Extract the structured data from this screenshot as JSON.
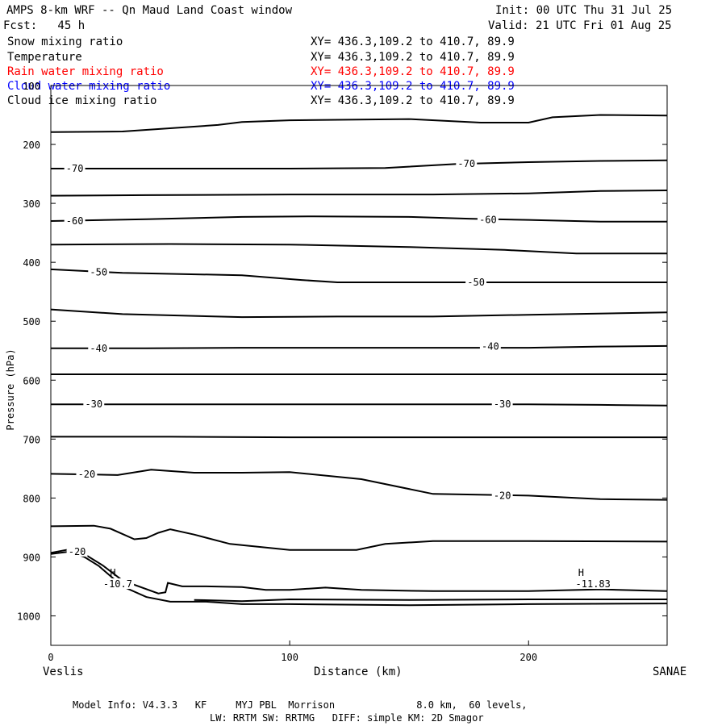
{
  "header": {
    "title": "AMPS 8-km WRF -- Qn Maud Land Coast window",
    "init": "Init: 00 UTC Thu 31 Jul 25",
    "fcst": "Fcst:   45 h",
    "valid": "Valid: 21 UTC Fri 01 Aug 25"
  },
  "legend": [
    {
      "name": "Snow mixing ratio",
      "xy": "XY= 436.3,109.2 to 410.7, 89.9",
      "color": "#000000"
    },
    {
      "name": "Temperature",
      "xy": "XY= 436.3,109.2 to 410.7, 89.9",
      "color": "#000000"
    },
    {
      "name": "Rain water mixing ratio",
      "xy": "XY= 436.3,109.2 to 410.7, 89.9",
      "color": "#ff0000"
    },
    {
      "name": "Cloud water mixing ratio",
      "xy": "XY= 436.3,109.2 to 410.7, 89.9",
      "color": "#0000ff"
    },
    {
      "name": "Cloud ice mixing ratio",
      "xy": "XY= 436.3,109.2 to 410.7, 89.9",
      "color": "#000000"
    }
  ],
  "axes": {
    "ylabel": "Pressure (hPa)",
    "xlabel": "Distance (km)",
    "left_station": "Veslis",
    "right_station": "SANAE"
  },
  "footer": {
    "line1": "Model Info: V4.3.3   KF     MYJ PBL  Morrison              8.0 km,  60 levels,",
    "line2": "LW: RRTM SW: RRTMG   DIFF: simple KM: 2D Smagor"
  },
  "chart_data": {
    "type": "line",
    "xlim": [
      0,
      258
    ],
    "ylim": [
      1050,
      100
    ],
    "x_ticks": [
      0,
      100,
      200
    ],
    "y_ticks": [
      100,
      200,
      300,
      400,
      500,
      600,
      700,
      800,
      900,
      1000
    ],
    "grid": false,
    "contours": [
      {
        "level": "-75",
        "points": [
          [
            0,
            179
          ],
          [
            30,
            178
          ],
          [
            70,
            167
          ],
          [
            80,
            162
          ],
          [
            100,
            159
          ],
          [
            150,
            157
          ],
          [
            180,
            163
          ],
          [
            200,
            163
          ],
          [
            210,
            154
          ],
          [
            230,
            150
          ],
          [
            258,
            151
          ]
        ]
      },
      {
        "level": "-70",
        "points": [
          [
            0,
            241
          ],
          [
            30,
            241
          ],
          [
            60,
            241
          ],
          [
            100,
            241
          ],
          [
            140,
            240
          ],
          [
            170,
            233
          ],
          [
            200,
            230
          ],
          [
            230,
            228
          ],
          [
            258,
            227
          ]
        ]
      },
      {
        "level": "-65",
        "points": [
          [
            0,
            287
          ],
          [
            40,
            286
          ],
          [
            100,
            285
          ],
          [
            160,
            285
          ],
          [
            200,
            283
          ],
          [
            230,
            279
          ],
          [
            258,
            278
          ]
        ]
      },
      {
        "level": "-60",
        "points": [
          [
            0,
            330
          ],
          [
            40,
            327
          ],
          [
            80,
            323
          ],
          [
            110,
            322
          ],
          [
            150,
            323
          ],
          [
            175,
            326
          ],
          [
            200,
            328
          ],
          [
            230,
            331
          ],
          [
            258,
            331
          ]
        ]
      },
      {
        "level": "-55",
        "points": [
          [
            0,
            370
          ],
          [
            50,
            369
          ],
          [
            100,
            370
          ],
          [
            150,
            374
          ],
          [
            190,
            379
          ],
          [
            220,
            385
          ],
          [
            258,
            385
          ]
        ]
      },
      {
        "level": "-50",
        "points": [
          [
            0,
            412
          ],
          [
            30,
            418
          ],
          [
            80,
            422
          ],
          [
            105,
            430
          ],
          [
            120,
            434
          ],
          [
            150,
            434
          ],
          [
            200,
            434
          ],
          [
            258,
            434
          ]
        ]
      },
      {
        "level": "-45",
        "points": [
          [
            0,
            480
          ],
          [
            30,
            488
          ],
          [
            80,
            493
          ],
          [
            120,
            492
          ],
          [
            160,
            492
          ],
          [
            200,
            489
          ],
          [
            258,
            485
          ]
        ]
      },
      {
        "level": "-40",
        "points": [
          [
            0,
            546
          ],
          [
            40,
            546
          ],
          [
            80,
            545
          ],
          [
            150,
            545
          ],
          [
            200,
            545
          ],
          [
            230,
            543
          ],
          [
            258,
            542
          ]
        ]
      },
      {
        "level": "-35",
        "points": [
          [
            0,
            590
          ],
          [
            100,
            590
          ],
          [
            200,
            590
          ],
          [
            258,
            590
          ]
        ]
      },
      {
        "level": "-30",
        "points": [
          [
            0,
            641
          ],
          [
            50,
            641
          ],
          [
            100,
            641
          ],
          [
            150,
            641
          ],
          [
            200,
            641
          ],
          [
            230,
            642
          ],
          [
            258,
            643
          ]
        ]
      },
      {
        "level": "-25",
        "points": [
          [
            0,
            696
          ],
          [
            50,
            696
          ],
          [
            100,
            697
          ],
          [
            150,
            697
          ],
          [
            200,
            697
          ],
          [
            258,
            697
          ]
        ]
      },
      {
        "level": "-20",
        "points": [
          [
            0,
            759
          ],
          [
            15,
            760
          ],
          [
            28,
            761
          ],
          [
            42,
            752
          ],
          [
            60,
            757
          ],
          [
            80,
            757
          ],
          [
            100,
            756
          ],
          [
            130,
            768
          ],
          [
            160,
            793
          ],
          [
            200,
            796
          ],
          [
            230,
            802
          ],
          [
            258,
            803
          ]
        ]
      },
      {
        "level": "-15",
        "points": [
          [
            0,
            848
          ],
          [
            18,
            847
          ],
          [
            25,
            852
          ],
          [
            35,
            870
          ],
          [
            40,
            868
          ],
          [
            45,
            859
          ],
          [
            50,
            853
          ],
          [
            60,
            862
          ],
          [
            75,
            878
          ],
          [
            100,
            888
          ],
          [
            128,
            888
          ],
          [
            140,
            878
          ],
          [
            160,
            873
          ],
          [
            200,
            873
          ],
          [
            258,
            874
          ]
        ]
      },
      {
        "level": "-10",
        "points": [
          [
            0,
            893
          ],
          [
            8,
            887
          ],
          [
            14,
            895
          ],
          [
            22,
            915
          ],
          [
            30,
            940
          ],
          [
            45,
            962
          ],
          [
            48,
            960
          ],
          [
            49,
            944
          ],
          [
            55,
            950
          ],
          [
            65,
            950
          ],
          [
            80,
            951
          ],
          [
            90,
            956
          ],
          [
            100,
            956
          ],
          [
            115,
            952
          ],
          [
            130,
            956
          ],
          [
            160,
            958
          ],
          [
            200,
            958
          ],
          [
            230,
            955
          ],
          [
            258,
            958
          ]
        ]
      },
      {
        "level": "-5",
        "points": [
          [
            0,
            895
          ],
          [
            8,
            891
          ],
          [
            14,
            900
          ],
          [
            20,
            915
          ],
          [
            30,
            950
          ],
          [
            40,
            968
          ],
          [
            50,
            976
          ],
          [
            65,
            976
          ],
          [
            80,
            980
          ],
          [
            100,
            980
          ],
          [
            150,
            982
          ],
          [
            200,
            980
          ],
          [
            258,
            979
          ]
        ]
      },
      {
        "level": "0",
        "points": [
          [
            60,
            973
          ],
          [
            80,
            975
          ],
          [
            100,
            972
          ],
          [
            150,
            973
          ],
          [
            200,
            972
          ],
          [
            258,
            972
          ]
        ]
      }
    ],
    "labels": [
      {
        "text": "-70",
        "x": 10,
        "y": 241
      },
      {
        "text": "-70",
        "x": 174,
        "y": 233
      },
      {
        "text": "-60",
        "x": 10,
        "y": 330
      },
      {
        "text": "-60",
        "x": 183,
        "y": 328
      },
      {
        "text": "-50",
        "x": 20,
        "y": 417
      },
      {
        "text": "-50",
        "x": 178,
        "y": 434
      },
      {
        "text": "-40",
        "x": 20,
        "y": 546
      },
      {
        "text": "-40",
        "x": 184,
        "y": 543
      },
      {
        "text": "-30",
        "x": 18,
        "y": 641
      },
      {
        "text": "-30",
        "x": 189,
        "y": 641
      },
      {
        "text": "-20",
        "x": 15,
        "y": 760
      },
      {
        "text": "-20",
        "x": 189,
        "y": 796
      },
      {
        "text": "-20",
        "x": 11,
        "y": 891
      },
      {
        "text": "H",
        "x": 26,
        "y": 927
      },
      {
        "text": "-10.7",
        "x": 28,
        "y": 946
      },
      {
        "text": "H",
        "x": 222,
        "y": 927
      },
      {
        "text": "-11.83",
        "x": 227,
        "y": 946
      }
    ]
  }
}
